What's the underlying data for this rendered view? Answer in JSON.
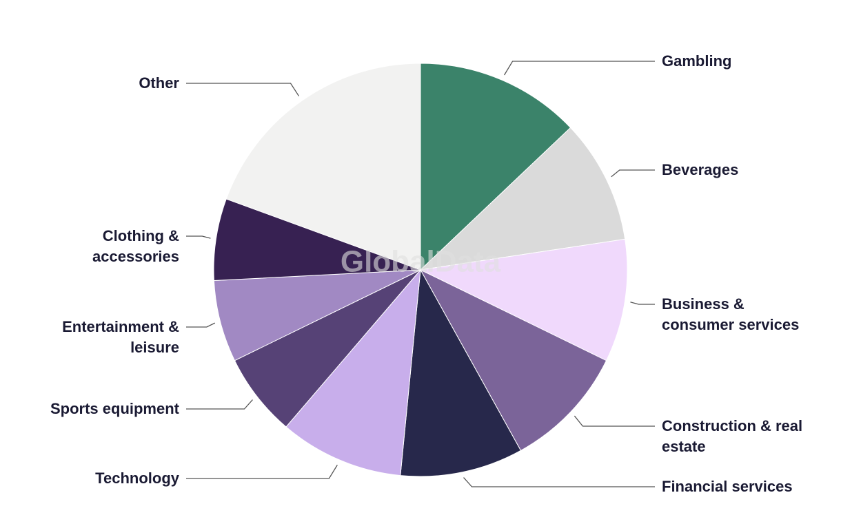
{
  "chart_data": {
    "type": "pie",
    "watermark": "GlobalData",
    "categories": [
      "Gambling",
      "Beverages",
      "Business &\nconsumer services",
      "Construction & real\nestate",
      "Financial services",
      "Technology",
      "Sports equipment",
      "Entertainment &\nleisure",
      "Clothing &\naccessories",
      "Other"
    ],
    "values": [
      12.9,
      9.7,
      9.6,
      9.7,
      9.6,
      9.7,
      6.5,
      6.4,
      6.4,
      19.4
    ],
    "colors": [
      "#3b836a",
      "#dadada",
      "#f0d9fc",
      "#7b6499",
      "#27284b",
      "#c8aeeb",
      "#564276",
      "#a189c3",
      "#372152",
      "#f2f2f1"
    ]
  }
}
